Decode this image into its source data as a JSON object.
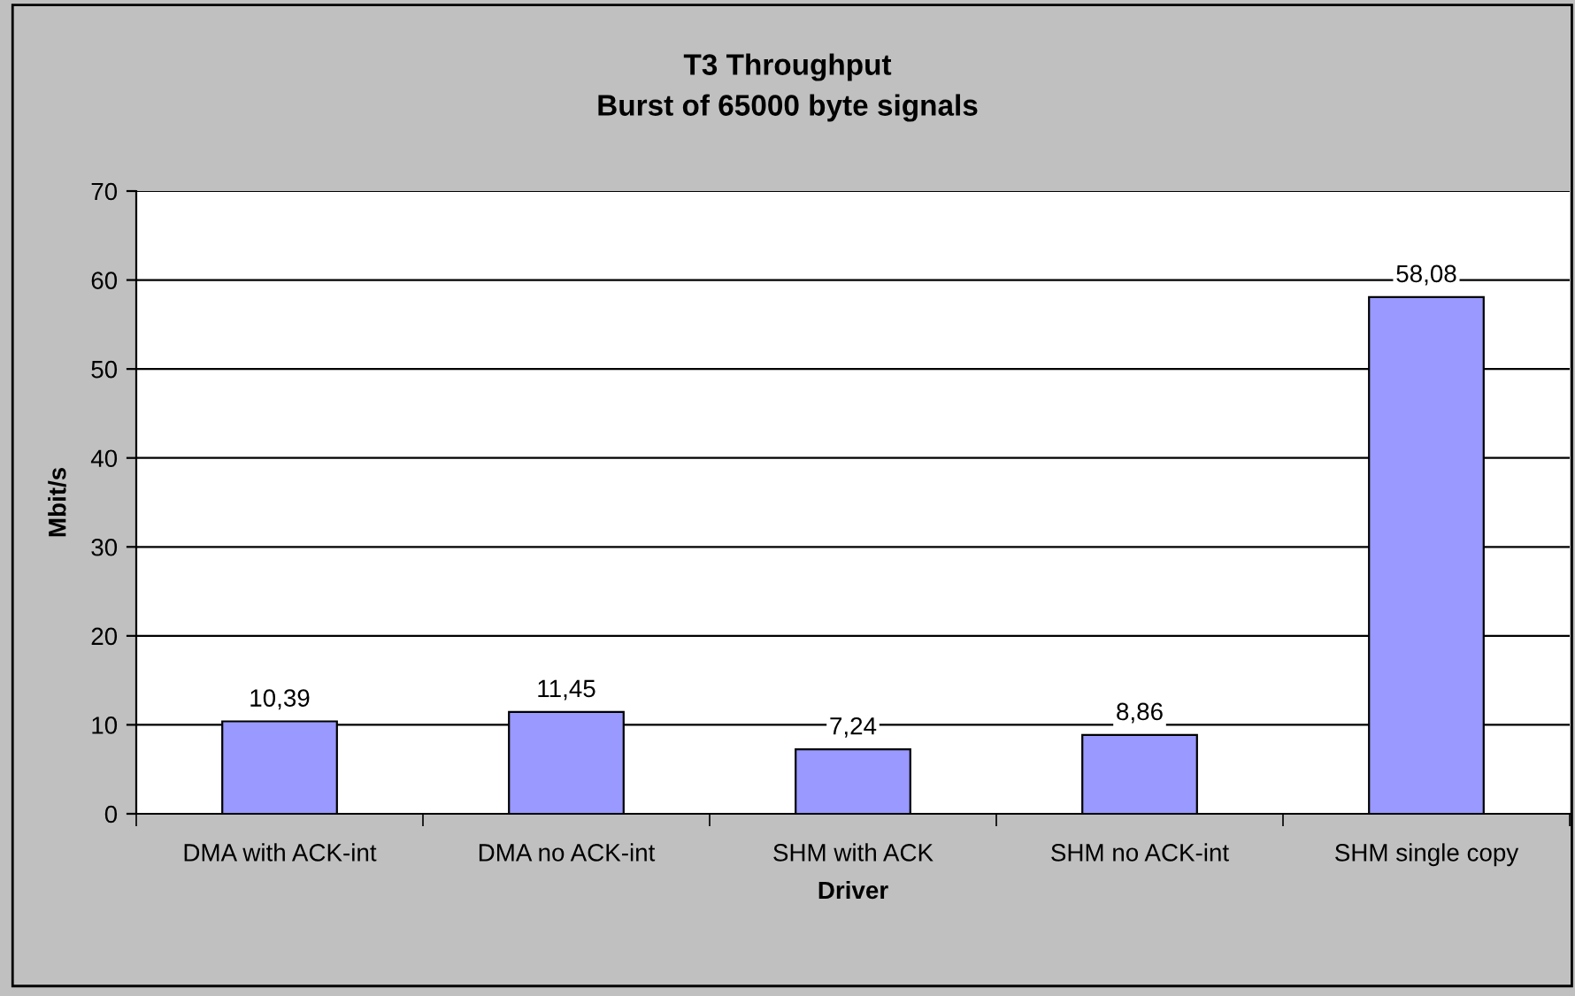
{
  "chart_data": {
    "type": "bar",
    "title": "T3 Throughput",
    "subtitle": "Burst of 65000 byte signals",
    "xlabel": "Driver",
    "ylabel": "Mbit/s",
    "categories": [
      "DMA with ACK-int",
      "DMA no ACK-int",
      "SHM with ACK",
      "SHM no ACK-int",
      "SHM single copy"
    ],
    "values": [
      10.39,
      11.45,
      7.24,
      8.86,
      58.08
    ],
    "value_labels": [
      "10,39",
      "11,45",
      "7,24",
      "8,86",
      "58,08"
    ],
    "color": "#9999ff",
    "ylim": [
      0,
      70
    ],
    "yticks": [
      0,
      10,
      20,
      30,
      40,
      50,
      60,
      70
    ],
    "grid": "y",
    "legend": false
  }
}
